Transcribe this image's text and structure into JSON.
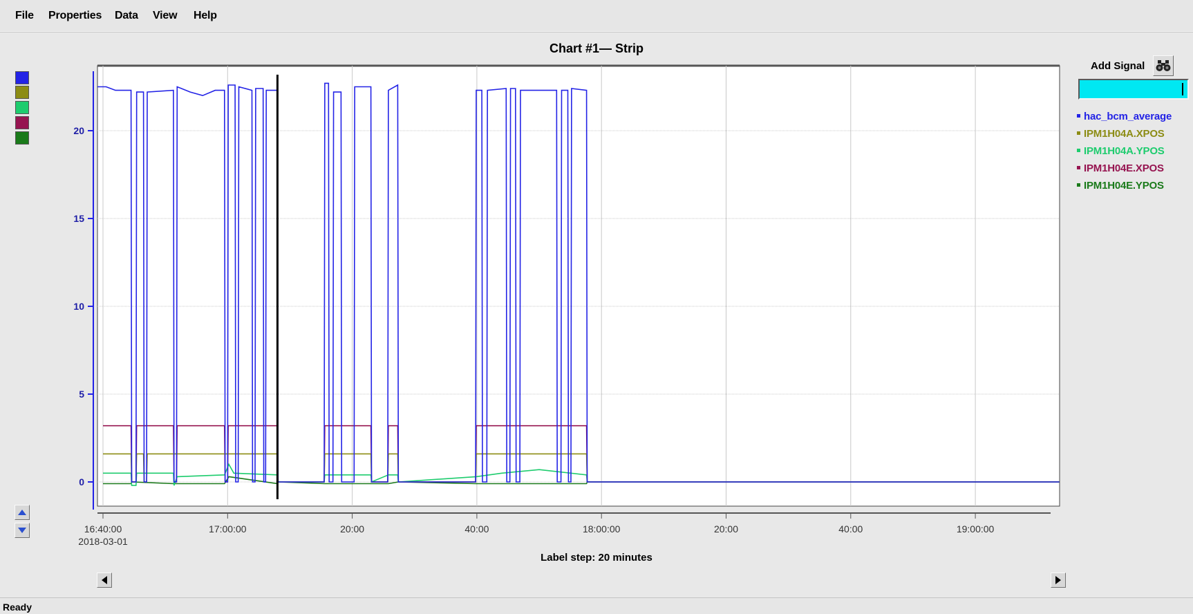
{
  "menu": [
    "File",
    "Properties",
    "Data",
    "View",
    "Help"
  ],
  "chart_title": "Chart #1— Strip",
  "label_step": "Label step: 20 minutes",
  "status": "Ready",
  "add_signal": {
    "label": "Add Signal",
    "icon": "binoculars-icon",
    "input_value": ""
  },
  "scroll_up_icon": "triangle-up-icon",
  "scroll_down_icon": "triangle-down-icon",
  "scroll_left_icon": "triangle-left-icon",
  "scroll_right_icon": "triangle-right-icon",
  "colors": {
    "hac_bcm_average": "#2323e6",
    "IPM1H04A.XPOS": "#8c8c14",
    "IPM1H04A.YPOS": "#1ecc6e",
    "IPM1H04E.XPOS": "#961450",
    "IPM1H04E.YPOS": "#1a7a1a",
    "input_background": "#00e8f2"
  },
  "legend": [
    {
      "name": "hac_bcm_average",
      "color": "#2323e6"
    },
    {
      "name": "IPM1H04A.XPOS",
      "color": "#8c8c14"
    },
    {
      "name": "IPM1H04A.YPOS",
      "color": "#1ecc6e"
    },
    {
      "name": "IPM1H04E.XPOS",
      "color": "#961450"
    },
    {
      "name": "IPM1H04E.YPOS",
      "color": "#1a7a1a"
    }
  ],
  "chart_data": {
    "type": "line",
    "title": "Chart #1— Strip",
    "xlabel": "Label step: 20 minutes",
    "ylabel": "",
    "x_ticks": [
      "16:40:00",
      "17:00:00",
      "20:00",
      "40:00",
      "18:00:00",
      "20:00",
      "40:00",
      "19:00:00"
    ],
    "x_date_label": "2018-03-01",
    "x_range_minutes": [
      0,
      160
    ],
    "y_ticks": [
      0,
      5,
      10,
      15,
      20
    ],
    "ylim": [
      -1.5,
      24.5
    ],
    "grid": true,
    "cursor_time_minutes": 28,
    "series": [
      {
        "name": "hac_bcm_average",
        "color": "#2323e6",
        "points": [
          [
            -2,
            22.5
          ],
          [
            0.5,
            22.5
          ],
          [
            2,
            22.3
          ],
          [
            4.5,
            22.3
          ],
          [
            4.6,
            0
          ],
          [
            5.3,
            0
          ],
          [
            5.4,
            22.2
          ],
          [
            6.5,
            22.2
          ],
          [
            6.6,
            0
          ],
          [
            7.0,
            0
          ],
          [
            7.1,
            22.2
          ],
          [
            11.3,
            22.3
          ],
          [
            11.4,
            0
          ],
          [
            11.8,
            0
          ],
          [
            11.9,
            22.5
          ],
          [
            14,
            22.2
          ],
          [
            16.0,
            22.0
          ],
          [
            18,
            22.3
          ],
          [
            19.5,
            22.3
          ],
          [
            19.6,
            0
          ],
          [
            20.0,
            0
          ],
          [
            20.1,
            22.6
          ],
          [
            21.2,
            22.6
          ],
          [
            21.3,
            0
          ],
          [
            21.7,
            0
          ],
          [
            21.8,
            22.5
          ],
          [
            23.9,
            22.3
          ],
          [
            24.0,
            0
          ],
          [
            24.4,
            0
          ],
          [
            24.5,
            22.4
          ],
          [
            25.7,
            22.4
          ],
          [
            25.8,
            0
          ],
          [
            26.1,
            0
          ],
          [
            26.2,
            22.3
          ],
          [
            28.0,
            22.3
          ],
          [
            28.1,
            0
          ],
          [
            35.5,
            0
          ],
          [
            35.6,
            22.7
          ],
          [
            36.2,
            22.7
          ],
          [
            36.3,
            0
          ],
          [
            36.9,
            0
          ],
          [
            37.0,
            22.2
          ],
          [
            38.2,
            22.2
          ],
          [
            38.3,
            0
          ],
          [
            40.3,
            0
          ],
          [
            40.4,
            22.5
          ],
          [
            43.0,
            22.5
          ],
          [
            43.1,
            0
          ],
          [
            45.7,
            0
          ],
          [
            45.8,
            22.3
          ],
          [
            47.3,
            22.6
          ],
          [
            47.4,
            0
          ],
          [
            59.8,
            0
          ],
          [
            59.9,
            22.3
          ],
          [
            60.8,
            22.3
          ],
          [
            60.9,
            0
          ],
          [
            61.6,
            0
          ],
          [
            61.7,
            22.3
          ],
          [
            64.7,
            22.4
          ],
          [
            64.8,
            0
          ],
          [
            65.3,
            0
          ],
          [
            65.4,
            22.4
          ],
          [
            66.2,
            22.4
          ],
          [
            66.3,
            0
          ],
          [
            66.9,
            0
          ],
          [
            67.0,
            22.3
          ],
          [
            72.8,
            22.3
          ],
          [
            72.9,
            0
          ],
          [
            73.5,
            0
          ],
          [
            73.6,
            22.3
          ],
          [
            74.6,
            22.3
          ],
          [
            74.7,
            0
          ],
          [
            75.1,
            0
          ],
          [
            75.2,
            22.4
          ],
          [
            77.6,
            22.3
          ],
          [
            77.7,
            0
          ],
          [
            153.5,
            0
          ]
        ]
      },
      {
        "name": "IPM1H04A.XPOS",
        "color": "#8c8c14",
        "points": [
          [
            0,
            1.6
          ],
          [
            4.5,
            1.6
          ],
          [
            4.6,
            0
          ],
          [
            5.3,
            0
          ],
          [
            5.4,
            1.6
          ],
          [
            6.5,
            1.6
          ],
          [
            6.6,
            0
          ],
          [
            7.0,
            0
          ],
          [
            7.1,
            1.6
          ],
          [
            28.0,
            1.6
          ],
          [
            28.1,
            0
          ],
          [
            35.5,
            0
          ],
          [
            35.6,
            1.6
          ],
          [
            43.0,
            1.6
          ],
          [
            43.1,
            0
          ],
          [
            45.7,
            0
          ],
          [
            45.8,
            1.6
          ],
          [
            47.3,
            1.6
          ],
          [
            47.4,
            0
          ],
          [
            59.8,
            0
          ],
          [
            59.9,
            1.6
          ],
          [
            77.6,
            1.6
          ],
          [
            77.7,
            0
          ],
          [
            153.5,
            0
          ]
        ]
      },
      {
        "name": "IPM1H04A.YPOS",
        "color": "#1ecc6e",
        "points": [
          [
            0,
            0.5
          ],
          [
            4.5,
            0.5
          ],
          [
            4.6,
            -0.2
          ],
          [
            5.3,
            -0.2
          ],
          [
            5.4,
            0.5
          ],
          [
            11.3,
            0.5
          ],
          [
            11.4,
            -0.2
          ],
          [
            11.9,
            0.3
          ],
          [
            19.5,
            0.4
          ],
          [
            20.2,
            1.0
          ],
          [
            21.0,
            0.5
          ],
          [
            28.0,
            0.4
          ],
          [
            28.1,
            0
          ],
          [
            35.5,
            0
          ],
          [
            35.6,
            0.4
          ],
          [
            43.0,
            0.4
          ],
          [
            43.1,
            0
          ],
          [
            45.8,
            0.4
          ],
          [
            47.3,
            0.4
          ],
          [
            47.4,
            0
          ],
          [
            59.9,
            0.3
          ],
          [
            64.0,
            0.5
          ],
          [
            70,
            0.7
          ],
          [
            77.6,
            0.4
          ],
          [
            77.7,
            0
          ],
          [
            153.5,
            0
          ]
        ]
      },
      {
        "name": "IPM1H04E.XPOS",
        "color": "#961450",
        "points": [
          [
            0,
            3.2
          ],
          [
            4.5,
            3.2
          ],
          [
            4.6,
            0
          ],
          [
            5.3,
            0
          ],
          [
            5.4,
            3.2
          ],
          [
            11.3,
            3.2
          ],
          [
            11.4,
            0
          ],
          [
            11.8,
            0
          ],
          [
            11.9,
            3.2
          ],
          [
            19.5,
            3.2
          ],
          [
            19.6,
            0
          ],
          [
            20.0,
            0
          ],
          [
            20.1,
            3.2
          ],
          [
            28.0,
            3.2
          ],
          [
            28.1,
            0
          ],
          [
            35.5,
            0
          ],
          [
            35.6,
            3.2
          ],
          [
            43.0,
            3.2
          ],
          [
            43.1,
            0
          ],
          [
            45.7,
            0
          ],
          [
            45.8,
            3.2
          ],
          [
            47.3,
            3.2
          ],
          [
            47.4,
            0
          ],
          [
            59.8,
            0
          ],
          [
            59.9,
            3.2
          ],
          [
            77.6,
            3.2
          ],
          [
            77.7,
            0
          ],
          [
            153.5,
            0
          ]
        ]
      },
      {
        "name": "IPM1H04E.YPOS",
        "color": "#1a7a1a",
        "points": [
          [
            0,
            -0.1
          ],
          [
            4.5,
            -0.1
          ],
          [
            4.6,
            0
          ],
          [
            11.3,
            -0.1
          ],
          [
            12,
            -0.1
          ],
          [
            19.5,
            -0.1
          ],
          [
            20.2,
            0.3
          ],
          [
            28.0,
            -0.1
          ],
          [
            28.1,
            0
          ],
          [
            35.6,
            -0.1
          ],
          [
            43.0,
            -0.1
          ],
          [
            45.8,
            -0.1
          ],
          [
            47.4,
            0
          ],
          [
            59.9,
            -0.1
          ],
          [
            77.6,
            -0.1
          ],
          [
            77.7,
            0
          ],
          [
            153.5,
            0
          ]
        ]
      }
    ]
  }
}
